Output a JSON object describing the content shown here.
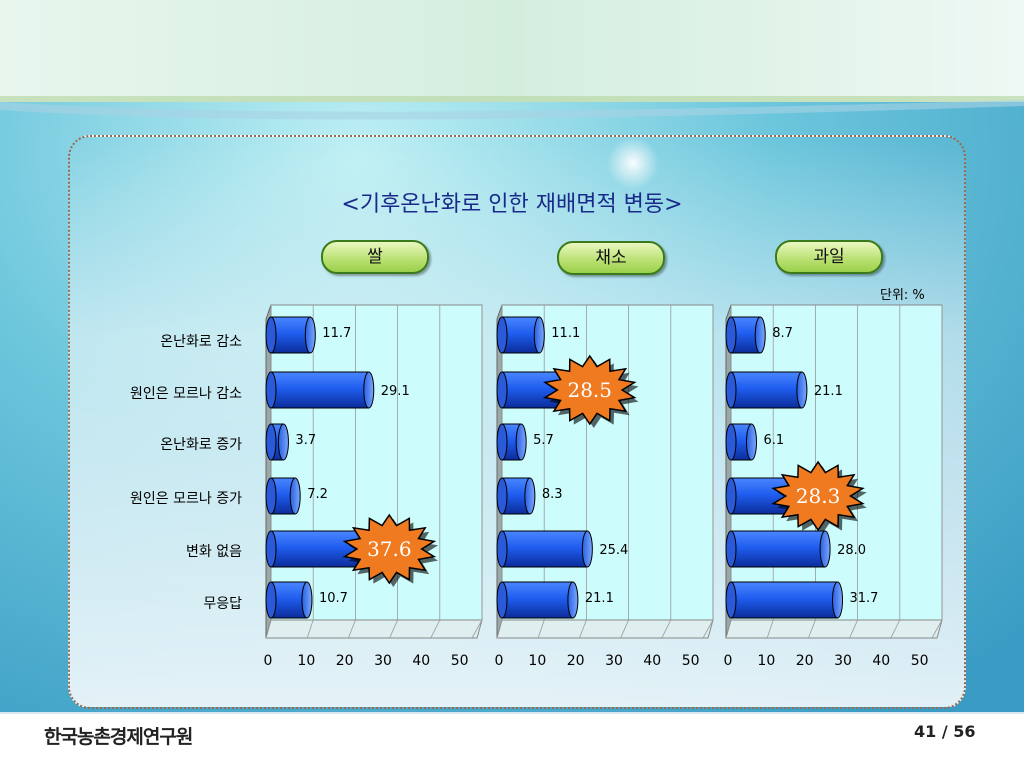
{
  "title": "<기후온난화로 인한 재배면적 변동>",
  "unit_label": "단위: %",
  "footer": {
    "logo_text": "한국농촌경제연구원",
    "page": "41 / 56"
  },
  "colors": {
    "bar": "#1f5ef0",
    "bar_dark": "#0c2c9a",
    "plot_bg": "#ccfdfc",
    "pill_border": "#3a7a1a",
    "burst": "#f07a20",
    "title": "#1a2a8a"
  },
  "chart_data": [
    {
      "type": "bar",
      "orientation": "horizontal",
      "title": "쌀",
      "categories": [
        "온난화로 감소",
        "원인은 모르나 감소",
        "온난화로 증가",
        "원인은 모르나 증가",
        "변화 없음",
        "무응답"
      ],
      "values": [
        11.7,
        29.1,
        3.7,
        7.2,
        37.6,
        10.7
      ],
      "labels": [
        "11.7",
        "29.1",
        "3.7",
        "7.2",
        "37.6",
        "10.7"
      ],
      "highlight_index": 4,
      "xlim": [
        0,
        50
      ],
      "x_ticks": [
        "0",
        "10",
        "20",
        "30",
        "40",
        "50"
      ]
    },
    {
      "type": "bar",
      "orientation": "horizontal",
      "title": "채소",
      "categories": [
        "온난화로 감소",
        "원인은 모르나 감소",
        "온난화로 증가",
        "원인은 모르나 증가",
        "변화 없음",
        "무응답"
      ],
      "values": [
        11.1,
        28.5,
        5.7,
        8.3,
        25.4,
        21.1
      ],
      "labels": [
        "11.1",
        "28.5",
        "5.7",
        "8.3",
        "25.4",
        "21.1"
      ],
      "highlight_index": 1,
      "xlim": [
        0,
        50
      ],
      "x_ticks": [
        "0",
        "10",
        "20",
        "30",
        "40",
        "50"
      ]
    },
    {
      "type": "bar",
      "orientation": "horizontal",
      "title": "과일",
      "categories": [
        "온난화로 감소",
        "원인은 모르나 감소",
        "온난화로 증가",
        "원인은 모르나 증가",
        "변화 없음",
        "무응답"
      ],
      "values": [
        8.7,
        21.1,
        6.1,
        28.3,
        28.0,
        31.7
      ],
      "labels": [
        "8.7",
        "21.1",
        "6.1",
        "28.3",
        "28.0",
        "31.7"
      ],
      "highlight_index": 3,
      "xlim": [
        0,
        50
      ],
      "x_ticks": [
        "0",
        "10",
        "20",
        "30",
        "40",
        "50"
      ]
    }
  ]
}
